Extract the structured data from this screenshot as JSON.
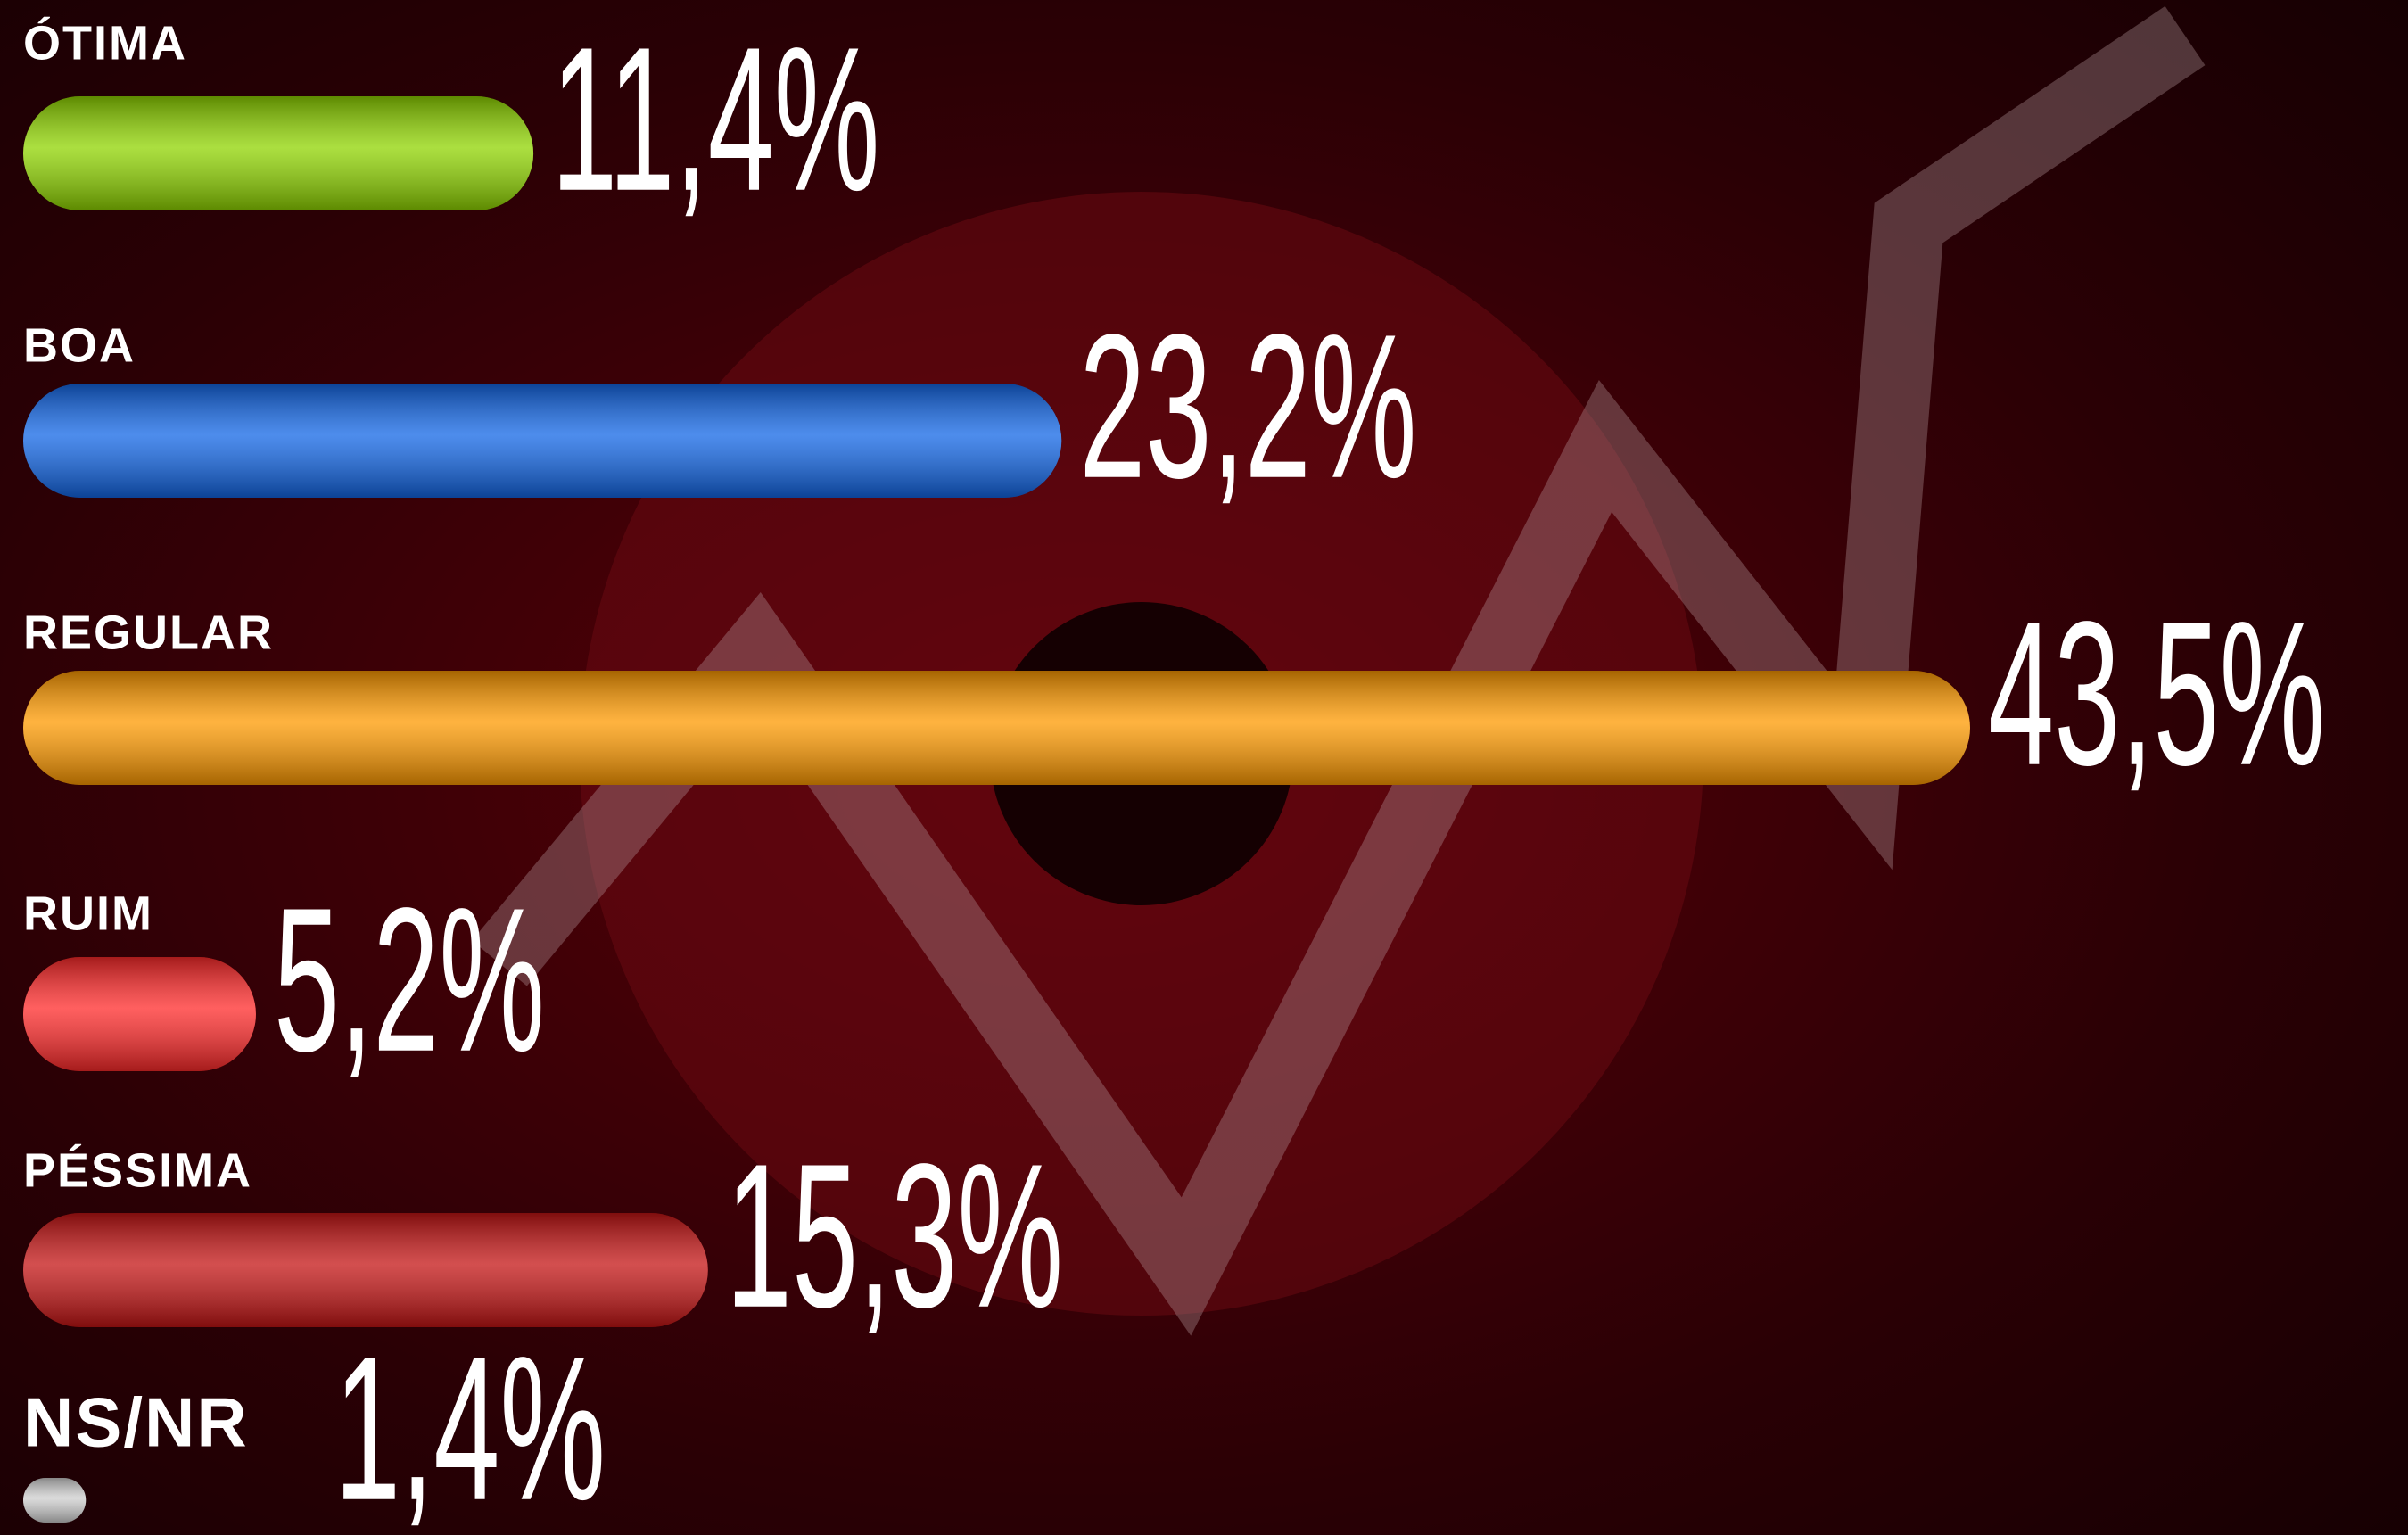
{
  "chart_data": {
    "type": "bar",
    "orientation": "horizontal",
    "categories": [
      "ÓTIMA",
      "BOA",
      "REGULAR",
      "RUIM",
      "PÉSSIMA",
      "NS/NR"
    ],
    "values": [
      11.4,
      23.2,
      43.5,
      5.2,
      15.3,
      1.4
    ],
    "value_labels": [
      "11,4%",
      "23,2%",
      "43,5%",
      "5,2%",
      "15,3%",
      "1,4%"
    ],
    "colors": [
      "#8fd400",
      "#1266e6",
      "#ff9a00",
      "#ff2a2a",
      "#c41414",
      "#cfcfcf"
    ]
  }
}
